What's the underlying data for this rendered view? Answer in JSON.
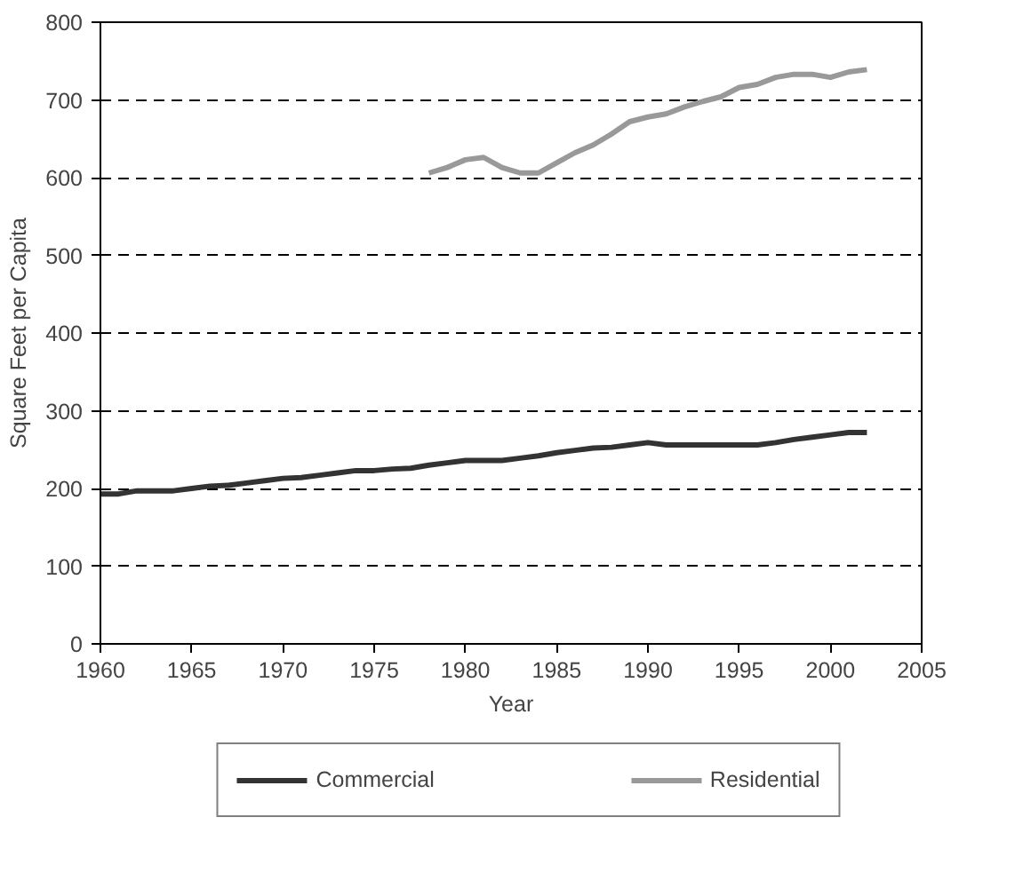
{
  "chart_data": {
    "type": "line",
    "xlabel": "Year",
    "ylabel": "Square Feet per Capita",
    "xlim": [
      1960,
      2005
    ],
    "xticks": [
      1960,
      1965,
      1970,
      1975,
      1980,
      1985,
      1990,
      1995,
      2000,
      2005
    ],
    "ylim": [
      0,
      800
    ],
    "yticks": [
      0,
      100,
      200,
      300,
      400,
      500,
      600,
      700,
      800
    ],
    "grid": "y",
    "legend": "bottom",
    "line_style": "solid",
    "series": [
      {
        "name": "Commercial",
        "color": "#333333",
        "x": [
          1960,
          1961,
          1962,
          1963,
          1964,
          1965,
          1966,
          1967,
          1968,
          1969,
          1970,
          1971,
          1972,
          1973,
          1974,
          1975,
          1976,
          1977,
          1978,
          1979,
          1980,
          1981,
          1982,
          1983,
          1984,
          1985,
          1986,
          1987,
          1988,
          1989,
          1990,
          1991,
          1992,
          1993,
          1994,
          1995,
          1996,
          1997,
          1998,
          1999,
          2000,
          2001,
          2002
        ],
        "values": [
          193,
          193,
          197,
          197,
          197,
          200,
          203,
          204,
          207,
          210,
          213,
          214,
          217,
          220,
          223,
          223,
          225,
          226,
          230,
          233,
          236,
          236,
          236,
          239,
          242,
          246,
          249,
          252,
          253,
          256,
          259,
          256,
          256,
          256,
          256,
          256,
          256,
          259,
          263,
          266,
          269,
          272,
          272
        ]
      },
      {
        "name": "Residential",
        "color": "#999999",
        "x": [
          1978,
          1979,
          1980,
          1981,
          1982,
          1983,
          1984,
          1985,
          1986,
          1987,
          1988,
          1989,
          1990,
          1991,
          1992,
          1993,
          1994,
          1995,
          1996,
          1997,
          1998,
          1999,
          2000,
          2001,
          2002
        ],
        "values": [
          606,
          613,
          623,
          626,
          613,
          606,
          606,
          619,
          632,
          642,
          656,
          672,
          678,
          682,
          691,
          698,
          704,
          716,
          720,
          729,
          733,
          733,
          729,
          736,
          739
        ]
      }
    ]
  }
}
